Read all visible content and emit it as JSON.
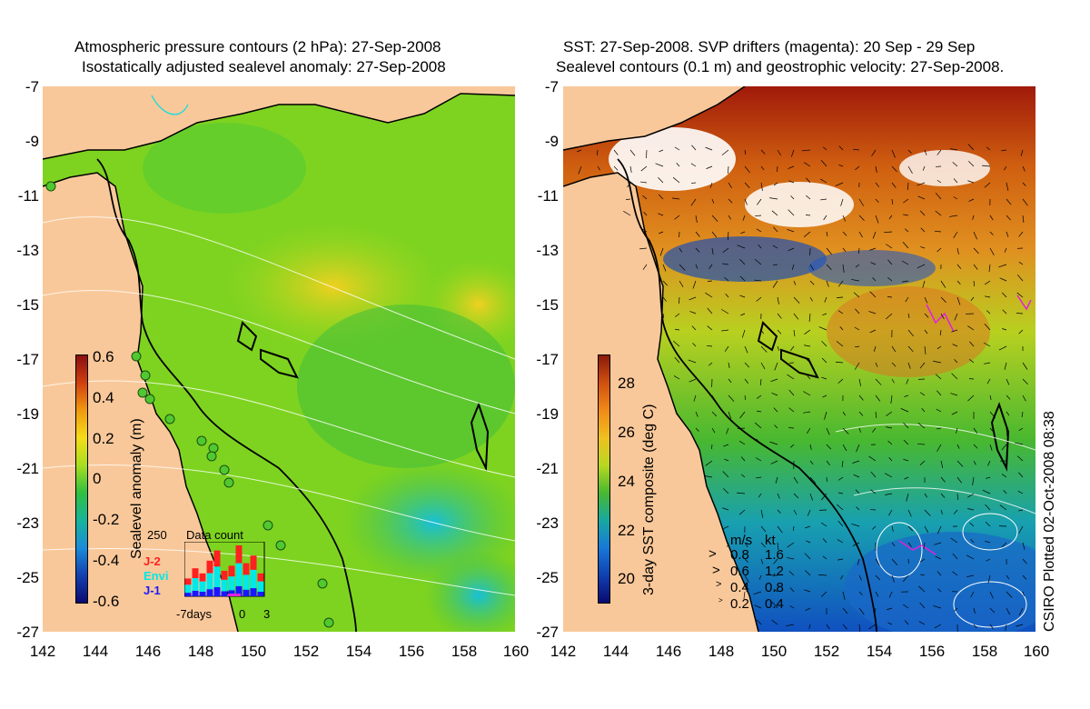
{
  "left_panel": {
    "title_line1": "Atmospheric pressure contours (2 hPa): 27-Sep-2008",
    "title_line2": "Isostatically adjusted sealevel anomaly: 27-Sep-2008",
    "colorbar": {
      "label": "Sealevel anomaly (m)",
      "ticks": [
        "0.6",
        "0.4",
        "0.2",
        "0",
        "-0.2",
        "-0.4",
        "-0.6"
      ],
      "colors": [
        "#8a0f0f",
        "#d04010",
        "#f09a10",
        "#f6dc18",
        "#a8de20",
        "#30c040",
        "#18b49a",
        "#1c8cd8",
        "#1440b0",
        "#0a0a70"
      ]
    },
    "data_count": {
      "title": "Data count",
      "ymax_label": "250",
      "legend": [
        {
          "label": "J-2",
          "color": "#ff2020"
        },
        {
          "label": "Envi",
          "color": "#00e8e8"
        },
        {
          "label": "J-1",
          "color": "#1818ff"
        }
      ],
      "x_labels": {
        "left": "-7days",
        "mid": "0",
        "right": "3"
      },
      "bars": [
        0.35,
        0.55,
        0.45,
        0.7,
        0.9,
        0.5,
        0.6,
        1.0,
        0.65,
        0.8,
        0.45
      ]
    }
  },
  "right_panel": {
    "title_line1": "SST: 27-Sep-2008. SVP drifters (magenta): 20 Sep - 29 Sep",
    "title_line2": "Sealevel contours (0.1 m) and geostrophic velocity: 27-Sep-2008.",
    "colorbar": {
      "label": "3-day SST composite (deg C)",
      "ticks": [
        "28",
        "26",
        "24",
        "22",
        "20"
      ],
      "colors": [
        "#8a1a0a",
        "#d05010",
        "#f08a18",
        "#f0c020",
        "#b8d820",
        "#48b830",
        "#18a8a0",
        "#1878d8",
        "#1040b0",
        "#0a0a70"
      ]
    },
    "velocity_legend": {
      "header_ms": "m/s",
      "header_kt": "kt",
      "rows": [
        {
          "ms": "0.8",
          "kt": "1.6"
        },
        {
          "ms": "0.6",
          "kt": "1.2"
        },
        {
          "ms": "0.4",
          "kt": "0.8"
        },
        {
          "ms": "0.2",
          "kt": "0.4"
        }
      ]
    }
  },
  "axes": {
    "lat_ticks": [
      "-7",
      "-9",
      "-11",
      "-13",
      "-15",
      "-17",
      "-19",
      "-21",
      "-23",
      "-25",
      "-27"
    ],
    "lon_ticks": [
      "142",
      "144",
      "146",
      "148",
      "150",
      "152",
      "154",
      "156",
      "158",
      "160"
    ]
  },
  "credit": "CSIRO Plotted 02-Oct-2008 08:38",
  "land_color": "#f9c89a",
  "coast_color": "#000000"
}
